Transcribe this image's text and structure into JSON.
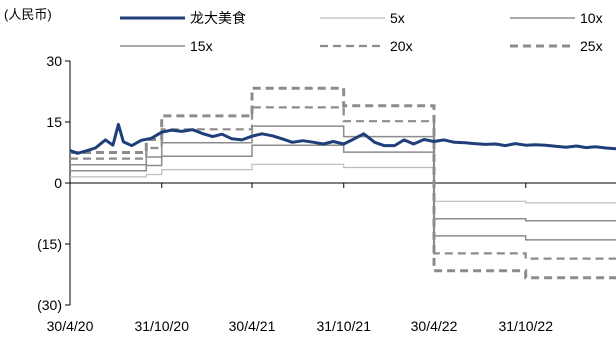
{
  "chart_data": {
    "type": "line",
    "unit_label": "(人民币)",
    "x_tick_labels": [
      "30/4/20",
      "31/10/20",
      "30/4/21",
      "31/10/21",
      "30/4/22",
      "31/10/22"
    ],
    "x_ticks": [
      "2020-04-30",
      "2020-10-31",
      "2021-04-30",
      "2021-10-31",
      "2022-04-30",
      "2022-10-31"
    ],
    "xlim": [
      "2020-04-30",
      "2023-04-30"
    ],
    "ylim": [
      -30,
      30
    ],
    "y_ticks": [
      30,
      15,
      0,
      -15,
      -30
    ],
    "y_tick_labels": [
      "30",
      "15",
      "0",
      "(15)",
      "(30)"
    ],
    "grid": false,
    "legend_position": "top",
    "colors": {
      "price": "#1f3f7a",
      "band_5x": "#bdbdbd",
      "band_10x": "#8c8c8c",
      "band_15x": "#8c8c8c",
      "band_20x": "#8c8c8c",
      "band_25x": "#8c8c8c",
      "axis": "#000000"
    },
    "series": [
      {
        "name": "龙大美食",
        "style": "thick-solid",
        "x": [
          "2020-04-30",
          "2020-05-15",
          "2020-06-01",
          "2020-06-20",
          "2020-07-10",
          "2020-07-25",
          "2020-08-05",
          "2020-08-15",
          "2020-09-01",
          "2020-09-20",
          "2020-10-10",
          "2020-10-31",
          "2020-11-20",
          "2020-12-10",
          "2021-01-01",
          "2021-01-20",
          "2021-02-10",
          "2021-03-01",
          "2021-03-20",
          "2021-04-10",
          "2021-04-30",
          "2021-05-20",
          "2021-06-10",
          "2021-07-01",
          "2021-07-20",
          "2021-08-10",
          "2021-09-01",
          "2021-09-20",
          "2021-10-10",
          "2021-10-31",
          "2021-11-20",
          "2021-12-10",
          "2022-01-01",
          "2022-01-20",
          "2022-02-10",
          "2022-03-01",
          "2022-03-20",
          "2022-04-10",
          "2022-04-30",
          "2022-05-20",
          "2022-06-10",
          "2022-07-01",
          "2022-07-20",
          "2022-08-10",
          "2022-09-01",
          "2022-09-20",
          "2022-10-10",
          "2022-10-31",
          "2022-11-20",
          "2022-12-10",
          "2023-01-01",
          "2023-01-20",
          "2023-02-10",
          "2023-03-01",
          "2023-03-20",
          "2023-04-10",
          "2023-04-30"
        ],
        "values": [
          8.0,
          7.3,
          7.9,
          8.6,
          10.6,
          9.3,
          14.4,
          10.1,
          9.2,
          10.5,
          11.0,
          12.5,
          13.0,
          12.7,
          13.1,
          12.2,
          11.4,
          12.0,
          10.9,
          10.6,
          11.5,
          12.1,
          11.6,
          10.8,
          10.0,
          10.4,
          10.0,
          9.6,
          10.2,
          9.6,
          10.8,
          12.1,
          10.0,
          9.2,
          9.2,
          10.6,
          9.6,
          10.7,
          10.2,
          10.6,
          10.0,
          9.9,
          9.7,
          9.5,
          9.6,
          9.2,
          9.7,
          9.3,
          9.4,
          9.3,
          9.0,
          8.8,
          9.1,
          8.7,
          8.9,
          8.6,
          8.4
        ]
      },
      {
        "name": "5x",
        "style": "thin-light",
        "steps": [
          [
            "2020-04-30",
            1.5
          ],
          [
            "2020-09-30",
            2.1
          ],
          [
            "2020-10-31",
            3.3
          ],
          [
            "2021-04-30",
            4.6
          ],
          [
            "2021-10-31",
            3.8
          ],
          [
            "2022-04-30",
            -4.5
          ],
          [
            "2022-10-31",
            -4.9
          ]
        ]
      },
      {
        "name": "10x",
        "style": "solid",
        "steps": [
          [
            "2020-04-30",
            3.0
          ],
          [
            "2020-09-30",
            4.3
          ],
          [
            "2020-10-31",
            6.6
          ],
          [
            "2021-04-30",
            9.3
          ],
          [
            "2021-10-31",
            7.6
          ],
          [
            "2022-04-30",
            -8.8
          ],
          [
            "2022-10-31",
            -9.3
          ]
        ]
      },
      {
        "name": "15x",
        "style": "solid",
        "steps": [
          [
            "2020-04-30",
            4.5
          ],
          [
            "2020-09-30",
            6.4
          ],
          [
            "2020-10-31",
            9.9
          ],
          [
            "2021-04-30",
            14.0
          ],
          [
            "2021-10-31",
            11.4
          ],
          [
            "2022-04-30",
            -13.0
          ],
          [
            "2022-10-31",
            -14.0
          ]
        ]
      },
      {
        "name": "20x",
        "style": "dashed",
        "steps": [
          [
            "2020-04-30",
            6.0
          ],
          [
            "2020-09-30",
            8.6
          ],
          [
            "2020-10-31",
            13.2
          ],
          [
            "2021-04-30",
            18.6
          ],
          [
            "2021-10-31",
            15.2
          ],
          [
            "2022-04-30",
            -17.3
          ],
          [
            "2022-10-31",
            -18.6
          ]
        ]
      },
      {
        "name": "25x",
        "style": "dashed",
        "steps": [
          [
            "2020-04-30",
            7.5
          ],
          [
            "2020-09-30",
            10.7
          ],
          [
            "2020-10-31",
            16.5
          ],
          [
            "2021-04-30",
            23.3
          ],
          [
            "2021-10-31",
            19.0
          ],
          [
            "2022-04-30",
            -21.6
          ],
          [
            "2022-10-31",
            -23.3
          ]
        ]
      }
    ]
  }
}
